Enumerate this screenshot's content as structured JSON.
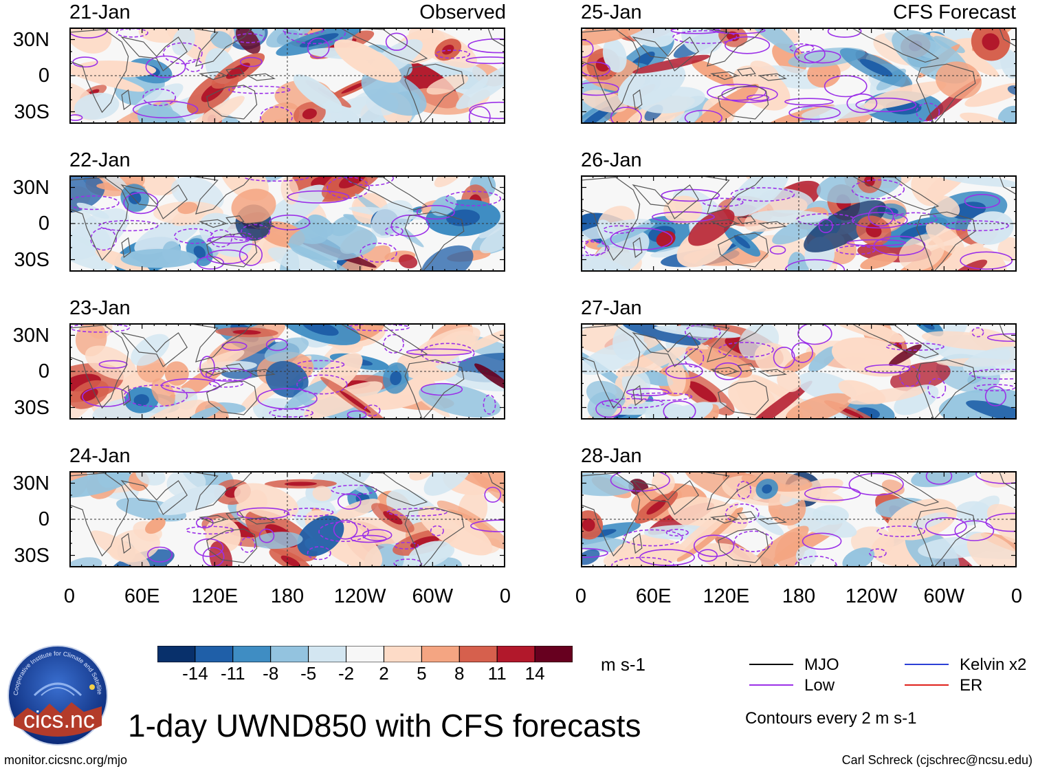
{
  "title": "1-day UWND850 with CFS forecasts",
  "units": "m s-1",
  "observed_label": "Observed",
  "forecast_label": "CFS Forecast",
  "footer_left": "monitor.cicsnc.org/mjo",
  "footer_right": "Carl Schreck (cjschrec@ncsu.edu)",
  "contour_note": "Contours every 2 m s-1",
  "logo": {
    "text": "cics.nc",
    "ring": "Cooperative Institute for Climate and Satellites"
  },
  "legend": [
    {
      "label": "MJO",
      "color": "#000000"
    },
    {
      "label": "Kelvin x2",
      "color": "#2b3fd6"
    },
    {
      "label": "Low",
      "color": "#9b30e8"
    },
    {
      "label": "ER",
      "color": "#e0201b"
    }
  ],
  "chart_data": {
    "type": "heatmap",
    "variable": "850-hPa zonal wind anomaly",
    "lat_ticks": [
      "30N",
      "0",
      "30S"
    ],
    "lon_ticks": [
      "0",
      "60E",
      "120E",
      "180",
      "120W",
      "60W",
      "0"
    ],
    "panels_observed": [
      "21-Jan",
      "22-Jan",
      "23-Jan",
      "24-Jan"
    ],
    "panels_forecast": [
      "25-Jan",
      "26-Jan",
      "27-Jan",
      "28-Jan"
    ],
    "colorbar": {
      "levels": [
        "-14",
        "-11",
        "-8",
        "-5",
        "-2",
        "2",
        "5",
        "8",
        "11",
        "14"
      ],
      "colors": [
        "#08306b",
        "#1f5fa8",
        "#3f8dc3",
        "#93c3df",
        "#d3e6f1",
        "#f7f7f7",
        "#fddbc7",
        "#f4a582",
        "#d6604d",
        "#b2182b",
        "#67001f"
      ]
    }
  }
}
